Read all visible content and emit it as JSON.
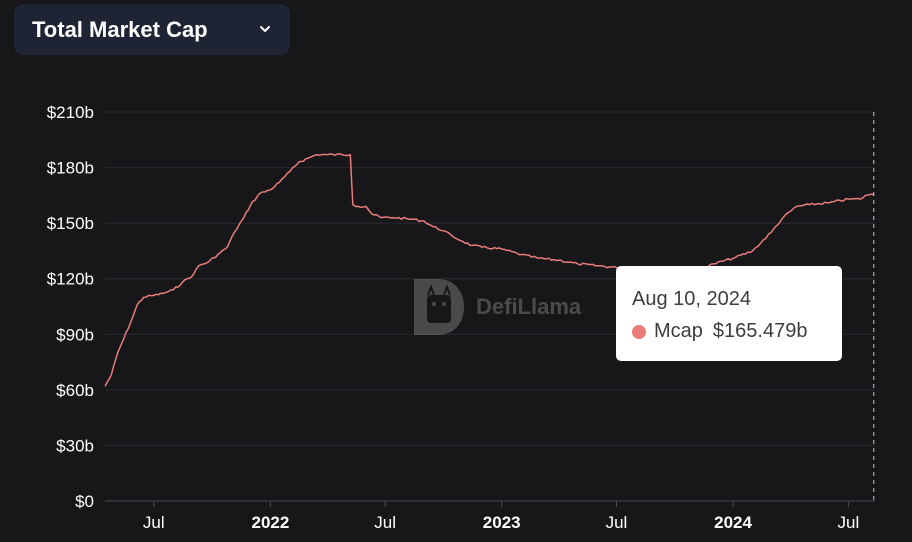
{
  "header": {
    "metric_label": "Total Market Cap",
    "dropdown_icon": "chevron-down-icon"
  },
  "watermark": {
    "logo_icon": "defillama-logo-icon",
    "text": "DefiLlama"
  },
  "tooltip": {
    "date": "Aug 10, 2024",
    "series": "Mcap",
    "value": "$165.479b",
    "color": "#e97b7b"
  },
  "chart_data": {
    "type": "line",
    "title": "",
    "xlabel": "",
    "ylabel": "",
    "grid": "horizontal",
    "ylim": [
      0,
      210
    ],
    "yticks": [
      0,
      30,
      60,
      90,
      120,
      150,
      180,
      210
    ],
    "ytick_labels": [
      "$0",
      "$30b",
      "$60b",
      "$90b",
      "$120b",
      "$150b",
      "$180b",
      "$210b"
    ],
    "xlim": [
      "2021-04-15",
      "2024-08-12"
    ],
    "xticks": [
      "2021-07-01",
      "2022-01-01",
      "2022-07-01",
      "2023-01-01",
      "2023-07-01",
      "2024-01-01",
      "2024-07-01"
    ],
    "xtick_labels": [
      "Jul",
      "2022",
      "Jul",
      "2023",
      "Jul",
      "2024",
      "Jul"
    ],
    "series": [
      {
        "color": "#e97b7b",
        "points": [
          [
            "2021-04-15",
            62
          ],
          [
            "2021-04-25",
            68
          ],
          [
            "2021-05-05",
            80
          ],
          [
            "2021-05-15",
            88
          ],
          [
            "2021-05-25",
            96
          ],
          [
            "2021-06-05",
            106
          ],
          [
            "2021-06-15",
            110
          ],
          [
            "2021-07-01",
            111
          ],
          [
            "2021-07-15",
            112
          ],
          [
            "2021-08-01",
            114
          ],
          [
            "2021-08-15",
            118
          ],
          [
            "2021-09-01",
            122
          ],
          [
            "2021-09-10",
            127
          ],
          [
            "2021-09-25",
            129
          ],
          [
            "2021-10-10",
            133
          ],
          [
            "2021-10-25",
            137
          ],
          [
            "2021-11-05",
            145
          ],
          [
            "2021-11-20",
            153
          ],
          [
            "2021-12-01",
            160
          ],
          [
            "2021-12-15",
            166
          ],
          [
            "2022-01-01",
            168
          ],
          [
            "2022-01-15",
            172
          ],
          [
            "2022-02-01",
            178
          ],
          [
            "2022-02-15",
            183
          ],
          [
            "2022-03-01",
            185
          ],
          [
            "2022-03-15",
            187
          ],
          [
            "2022-04-01",
            187
          ],
          [
            "2022-04-15",
            187
          ],
          [
            "2022-05-07",
            187
          ],
          [
            "2022-05-11",
            160
          ],
          [
            "2022-05-20",
            159
          ],
          [
            "2022-06-01",
            159
          ],
          [
            "2022-06-10",
            155
          ],
          [
            "2022-06-25",
            153
          ],
          [
            "2022-07-15",
            153
          ],
          [
            "2022-08-15",
            152
          ],
          [
            "2022-09-01",
            151
          ],
          [
            "2022-09-15",
            148
          ],
          [
            "2022-10-01",
            146
          ],
          [
            "2022-10-15",
            143
          ],
          [
            "2022-11-01",
            140
          ],
          [
            "2022-11-15",
            138
          ],
          [
            "2022-12-01",
            137
          ],
          [
            "2023-01-01",
            136
          ],
          [
            "2023-02-01",
            133
          ],
          [
            "2023-03-01",
            131
          ],
          [
            "2023-04-01",
            130
          ],
          [
            "2023-05-01",
            128
          ],
          [
            "2023-06-01",
            127
          ],
          [
            "2023-07-01",
            126
          ],
          [
            "2023-08-01",
            124
          ],
          [
            "2023-09-01",
            123
          ],
          [
            "2023-10-01",
            122
          ],
          [
            "2023-11-01",
            124
          ],
          [
            "2023-12-01",
            128
          ],
          [
            "2024-01-01",
            131
          ],
          [
            "2024-02-01",
            135
          ],
          [
            "2024-03-01",
            145
          ],
          [
            "2024-03-20",
            153
          ],
          [
            "2024-04-10",
            159
          ],
          [
            "2024-05-01",
            160
          ],
          [
            "2024-06-01",
            161
          ],
          [
            "2024-07-01",
            163
          ],
          [
            "2024-07-20",
            163
          ],
          [
            "2024-07-28",
            165
          ],
          [
            "2024-08-10",
            165.479
          ]
        ]
      }
    ]
  }
}
